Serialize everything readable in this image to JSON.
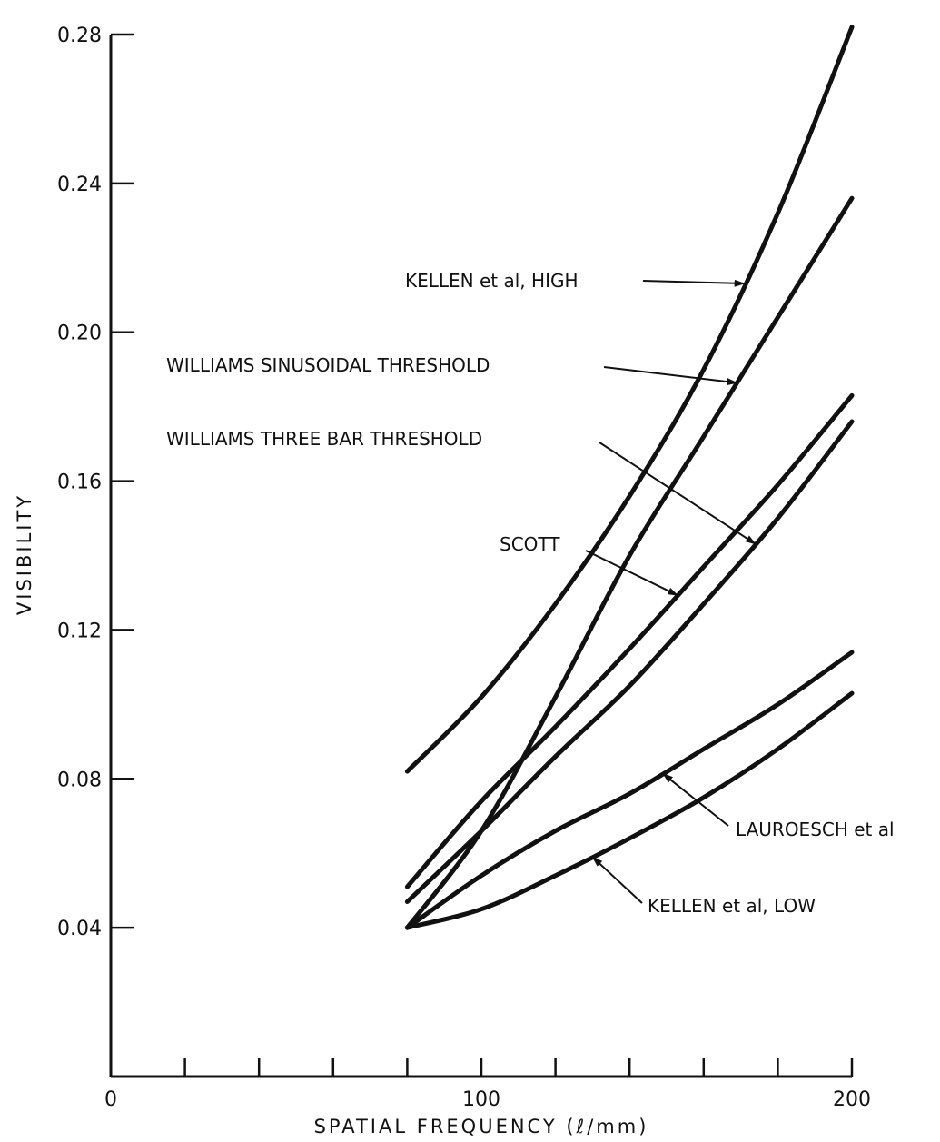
{
  "chart_data": {
    "type": "line",
    "title": "",
    "xlabel": "SPATIAL FREQUENCY (ℓ/mm)",
    "ylabel": "VISIBILITY",
    "xlim": [
      0,
      200
    ],
    "ylim": [
      0,
      0.28
    ],
    "x_ticks": [
      0,
      20,
      40,
      60,
      80,
      100,
      120,
      140,
      160,
      180,
      200
    ],
    "x_tick_labels": [
      {
        "value": 0,
        "label": "0"
      },
      {
        "value": 100,
        "label": "100"
      },
      {
        "value": 200,
        "label": "200"
      }
    ],
    "y_tick_labels": [
      {
        "value": 0.04,
        "label": "0.04"
      },
      {
        "value": 0.08,
        "label": "0.08"
      },
      {
        "value": 0.12,
        "label": "0.12"
      },
      {
        "value": 0.16,
        "label": "0.16"
      },
      {
        "value": 0.2,
        "label": "0.20"
      },
      {
        "value": 0.24,
        "label": "0.24"
      },
      {
        "value": 0.28,
        "label": "0.28"
      }
    ],
    "grid": false,
    "series": [
      {
        "name": "KELLEN et al, HIGH",
        "x": [
          80,
          100,
          120,
          140,
          160,
          180,
          200
        ],
        "y": [
          0.082,
          0.102,
          0.127,
          0.156,
          0.19,
          0.232,
          0.282
        ]
      },
      {
        "name": "WILLIAMS SINUSOIDAL THRESHOLD",
        "x": [
          80,
          100,
          120,
          140,
          160,
          180,
          200
        ],
        "y": [
          0.04,
          0.066,
          0.102,
          0.14,
          0.172,
          0.204,
          0.236
        ]
      },
      {
        "name": "WILLIAMS THREE BAR THRESHOLD",
        "x": [
          80,
          100,
          120,
          140,
          160,
          180,
          200
        ],
        "y": [
          0.047,
          0.066,
          0.086,
          0.105,
          0.127,
          0.15,
          0.176
        ]
      },
      {
        "name": "SCOTT",
        "x": [
          80,
          100,
          120,
          140,
          160,
          180,
          200
        ],
        "y": [
          0.051,
          0.074,
          0.094,
          0.115,
          0.137,
          0.159,
          0.183
        ]
      },
      {
        "name": "LAUROESCH et al",
        "x": [
          80,
          100,
          120,
          140,
          160,
          180,
          200
        ],
        "y": [
          0.04,
          0.054,
          0.066,
          0.076,
          0.088,
          0.1,
          0.114
        ]
      },
      {
        "name": "KELLEN et al, LOW",
        "x": [
          80,
          100,
          120,
          140,
          160,
          180,
          200
        ],
        "y": [
          0.04,
          0.045,
          0.054,
          0.064,
          0.075,
          0.088,
          0.103
        ]
      }
    ],
    "annotations": [
      {
        "text": "KELLEN et al, HIGH",
        "target_series": 0,
        "target_x": 171
      },
      {
        "text": "WILLIAMS SINUSOIDAL THRESHOLD",
        "target_series": 1,
        "target_x": 169
      },
      {
        "text": "WILLIAMS THREE BAR THRESHOLD",
        "target_series": 2,
        "target_x": 174
      },
      {
        "text": "SCOTT",
        "target_series": 3,
        "target_x": 153
      },
      {
        "text": "LAUROESCH et al",
        "target_series": 4,
        "target_x": 149
      },
      {
        "text": "KELLEN et al, LOW",
        "target_series": 5,
        "target_x": 130
      }
    ]
  }
}
